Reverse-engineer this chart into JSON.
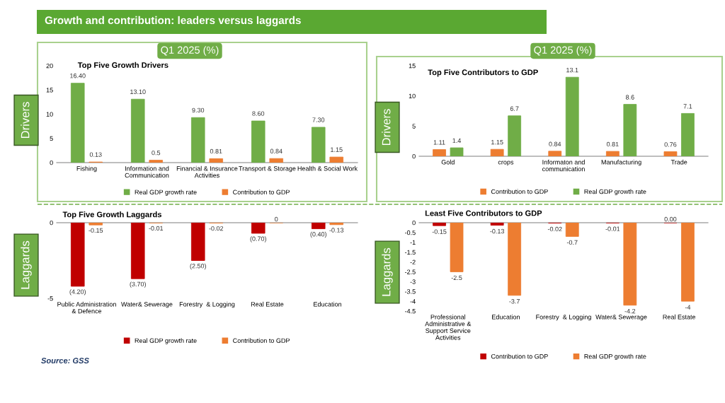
{
  "chart_data": [
    {
      "type": "bar",
      "title": "Top Five Growth Drivers",
      "categories": [
        "Fishing",
        "Information and\nCommunication",
        "Financial & Insurance\nActivities",
        "Transport & Storage",
        "Health & Social Work"
      ],
      "series": [
        {
          "name": "Real GDP growth rate",
          "color": "#70ad47",
          "values": [
            16.4,
            13.1,
            9.3,
            8.6,
            7.3
          ],
          "value_labels": [
            "16.40",
            "13.10",
            "9.30",
            "8.60",
            "7.30"
          ]
        },
        {
          "name": "Contribution to GDP",
          "color": "#ed7d31",
          "values": [
            0.13,
            0.5,
            0.81,
            0.84,
            1.15
          ],
          "value_labels": [
            "0.13",
            "0.5",
            "0.81",
            "0.84",
            "1.15"
          ]
        }
      ],
      "ylim": [
        0,
        20
      ],
      "yticks": [
        0,
        5,
        10,
        15,
        20
      ],
      "legend": "bottom",
      "grid": false,
      "annotations": [
        "Growth and contribution: leaders versus laggards",
        "Q1 2025 (%)",
        "Drivers"
      ]
    },
    {
      "type": "bar",
      "title": "Top Five Contributors to GDP",
      "categories": [
        "Gold",
        "crops",
        "Informaton and\ncommunication",
        "Manufacturing",
        "Trade"
      ],
      "series": [
        {
          "name": "Contribution to GDP",
          "color": "#ed7d31",
          "values": [
            1.11,
            1.15,
            0.84,
            0.81,
            0.76
          ],
          "value_labels": [
            "1.11",
            "1.15",
            "0.84",
            "0.81",
            "0.76"
          ]
        },
        {
          "name": "Real GDP growth rate",
          "color": "#70ad47",
          "values": [
            1.4,
            6.7,
            13.1,
            8.6,
            7.1
          ],
          "value_labels": [
            "1.4",
            "6.7",
            "13.1",
            "8.6",
            "7.1"
          ]
        }
      ],
      "ylim": [
        0,
        15
      ],
      "yticks": [
        0,
        5,
        10,
        15
      ],
      "legend": "bottom",
      "grid": false,
      "annotations": [
        "Q1 2025 (%)",
        "Drivers"
      ]
    },
    {
      "type": "bar",
      "title": "Top Five Growth Laggards",
      "categories": [
        "Public Administration\n& Defence",
        "Water& Sewerage",
        "Forestry  & Logging",
        "Real Estate",
        "Education"
      ],
      "series": [
        {
          "name": "Real GDP growth rate",
          "color": "#c00000",
          "values": [
            -4.2,
            -3.7,
            -2.5,
            -0.7,
            -0.4
          ],
          "value_labels": [
            "(4.20)",
            "(3.70)",
            "(2.50)",
            "(0.70)",
            "(0.40)"
          ]
        },
        {
          "name": "Contribution to GDP",
          "color": "#ed7d31",
          "values": [
            -0.15,
            -0.01,
            -0.02,
            0,
            -0.13
          ],
          "value_labels": [
            "-0.15",
            "-0.01",
            "-0.02",
            "0",
            "-0.13"
          ]
        }
      ],
      "ylim": [
        -5,
        0
      ],
      "yticks": [
        -5,
        0
      ],
      "legend": "bottom",
      "grid": false,
      "annotations": [
        "Laggards",
        "Source: GSS"
      ]
    },
    {
      "type": "bar",
      "title": "Least Five Contributors to GDP",
      "categories": [
        "Professional\nAdministrative &\nSupport Service\nActivities",
        "Education",
        "Forestry  & Logging",
        "Water& Sewerage",
        "Real Estate"
      ],
      "series": [
        {
          "name": "Contribution to GDP",
          "color": "#c00000",
          "values": [
            -0.15,
            -0.13,
            -0.02,
            -0.01,
            0
          ],
          "value_labels": [
            "-0.15",
            "-0.13",
            "-0.02",
            "-0.01",
            "0.00"
          ]
        },
        {
          "name": "Real GDP growth rate",
          "color": "#ed7d31",
          "values": [
            -2.5,
            -3.7,
            -0.7,
            -4.2,
            -4
          ],
          "value_labels": [
            "-2.5",
            "-3.7",
            "-0.7",
            "-4.2",
            "-4"
          ]
        }
      ],
      "ylim": [
        -4.5,
        0
      ],
      "yticks": [
        -4.5,
        -4,
        -3.5,
        -3,
        -2.5,
        -2,
        -1.5,
        -1,
        -0.5,
        0
      ],
      "legend": "bottom",
      "grid": false,
      "annotations": [
        "Laggards"
      ]
    }
  ]
}
